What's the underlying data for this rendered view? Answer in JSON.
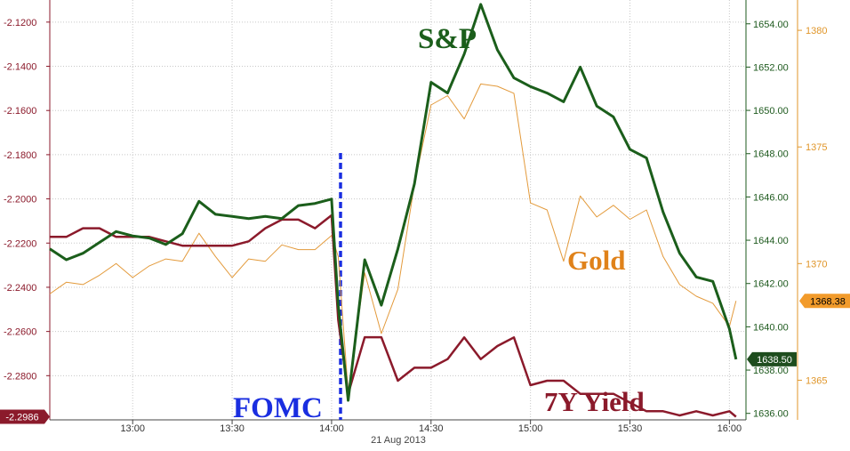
{
  "chart_data": {
    "type": "line",
    "date_label": "21 Aug 2013",
    "x_ticks": [
      "13:00",
      "13:30",
      "14:00",
      "14:30",
      "15:00",
      "15:30",
      "16:00"
    ],
    "x_range": [
      "12:35",
      "16:05"
    ],
    "grid": true,
    "axes": {
      "left": {
        "range": [
          -2.3,
          -2.11
        ],
        "ticks": [
          "-2.1200",
          "-2.1400",
          "-2.1600",
          "-2.1800",
          "-2.2000",
          "-2.2200",
          "-2.2400",
          "-2.2600",
          "-2.2800"
        ],
        "tick_values": [
          -2.12,
          -2.14,
          -2.16,
          -2.18,
          -2.2,
          -2.22,
          -2.24,
          -2.26,
          -2.28
        ],
        "color": "#8b1a2b"
      },
      "right1": {
        "range": [
          1635.7,
          1655.1
        ],
        "ticks": [
          "1654.00",
          "1652.00",
          "1650.00",
          "1648.00",
          "1646.00",
          "1644.00",
          "1642.00",
          "1640.00",
          "1638.00",
          "1636.00"
        ],
        "tick_values": [
          1654,
          1652,
          1650,
          1648,
          1646,
          1644,
          1642,
          1640,
          1638,
          1636
        ],
        "color": "#1e5a1e"
      },
      "right2": {
        "range": [
          1363.3,
          1381.3
        ],
        "ticks": [
          "1380",
          "1375",
          "1370",
          "1365"
        ],
        "tick_values": [
          1380,
          1375,
          1370,
          1365
        ],
        "color": "#e0962a"
      }
    },
    "series": [
      {
        "name": "S&P",
        "axis": "right1",
        "color": "#1b5e1b",
        "last_label": "1638.50",
        "x": [
          "12:35",
          "12:40",
          "12:45",
          "12:50",
          "12:55",
          "13:00",
          "13:05",
          "13:10",
          "13:15",
          "13:20",
          "13:25",
          "13:30",
          "13:35",
          "13:40",
          "13:45",
          "13:50",
          "13:55",
          "14:00",
          "14:02",
          "14:05",
          "14:10",
          "14:15",
          "14:20",
          "14:25",
          "14:30",
          "14:35",
          "14:40",
          "14:45",
          "14:50",
          "14:55",
          "15:00",
          "15:05",
          "15:10",
          "15:15",
          "15:20",
          "15:25",
          "15:30",
          "15:35",
          "15:40",
          "15:45",
          "15:50",
          "15:55",
          "16:00",
          "16:02"
        ],
        "y": [
          1643.6,
          1643.1,
          1643.4,
          1643.9,
          1644.4,
          1644.2,
          1644.1,
          1643.8,
          1644.3,
          1645.8,
          1645.2,
          1645.1,
          1645.0,
          1645.1,
          1645.0,
          1645.6,
          1645.7,
          1645.9,
          1641.0,
          1636.6,
          1643.1,
          1641.0,
          1643.6,
          1646.6,
          1651.3,
          1650.8,
          1652.6,
          1654.9,
          1652.8,
          1651.5,
          1651.1,
          1650.8,
          1650.4,
          1652.0,
          1650.2,
          1649.7,
          1648.2,
          1647.8,
          1645.3,
          1643.4,
          1642.3,
          1642.1,
          1639.9,
          1638.5
        ]
      },
      {
        "name": "Gold",
        "axis": "right2",
        "color": "#e39a3b",
        "last_label": "1368.38",
        "x": [
          "12:35",
          "12:40",
          "12:45",
          "12:50",
          "12:55",
          "13:00",
          "13:05",
          "13:10",
          "13:15",
          "13:20",
          "13:25",
          "13:30",
          "13:35",
          "13:40",
          "13:45",
          "13:50",
          "13:55",
          "14:00",
          "14:02",
          "14:05",
          "14:10",
          "14:15",
          "14:20",
          "14:25",
          "14:30",
          "14:35",
          "14:40",
          "14:45",
          "14:50",
          "14:55",
          "15:00",
          "15:05",
          "15:10",
          "15:15",
          "15:20",
          "15:25",
          "15:30",
          "15:35",
          "15:40",
          "15:45",
          "15:50",
          "15:55",
          "16:00",
          "16:02"
        ],
        "y": [
          1368.7,
          1369.2,
          1369.1,
          1369.5,
          1370.0,
          1369.4,
          1369.9,
          1370.2,
          1370.1,
          1371.3,
          1370.3,
          1369.4,
          1370.2,
          1370.1,
          1370.8,
          1370.6,
          1370.6,
          1371.2,
          1370.3,
          1364.5,
          1369.6,
          1367.0,
          1368.9,
          1373.4,
          1376.8,
          1377.2,
          1376.2,
          1377.7,
          1377.6,
          1377.3,
          1372.6,
          1372.3,
          1370.1,
          1372.9,
          1372.0,
          1372.5,
          1371.9,
          1372.3,
          1370.3,
          1369.1,
          1368.6,
          1368.3,
          1367.3,
          1368.4
        ]
      },
      {
        "name": "7Y Yield",
        "axis": "left",
        "color": "#8b1a2b",
        "last_label": "-2.2986",
        "x": [
          "12:35",
          "12:40",
          "12:45",
          "12:50",
          "12:55",
          "13:00",
          "13:05",
          "13:10",
          "13:15",
          "13:20",
          "13:25",
          "13:30",
          "13:35",
          "13:40",
          "13:45",
          "13:50",
          "13:55",
          "14:00",
          "14:02",
          "14:05",
          "14:10",
          "14:15",
          "14:20",
          "14:25",
          "14:30",
          "14:35",
          "14:40",
          "14:45",
          "14:50",
          "14:55",
          "15:00",
          "15:05",
          "15:10",
          "15:15",
          "15:20",
          "15:25",
          "15:30",
          "15:35",
          "15:40",
          "15:45",
          "15:50",
          "15:55",
          "16:00",
          "16:02"
        ],
        "y": [
          -2.2172,
          -2.2172,
          -2.2133,
          -2.2133,
          -2.2172,
          -2.2172,
          -2.2172,
          -2.2192,
          -2.2212,
          -2.2212,
          -2.2212,
          -2.2212,
          -2.2192,
          -2.2133,
          -2.2094,
          -2.2094,
          -2.2133,
          -2.2074,
          -2.2548,
          -2.2882,
          -2.2626,
          -2.2626,
          -2.2823,
          -2.2764,
          -2.2764,
          -2.2725,
          -2.2627,
          -2.2725,
          -2.2666,
          -2.2627,
          -2.2843,
          -2.2823,
          -2.2823,
          -2.2882,
          -2.2882,
          -2.2882,
          -2.2922,
          -2.2961,
          -2.2961,
          -2.298,
          -2.2961,
          -2.298,
          -2.2961,
          -2.2986
        ]
      }
    ],
    "annotations": {
      "sp": "S&P",
      "gold": "Gold",
      "yield": "7Y Yield",
      "fomc": "FOMC",
      "fomc_time": "14:00"
    }
  }
}
